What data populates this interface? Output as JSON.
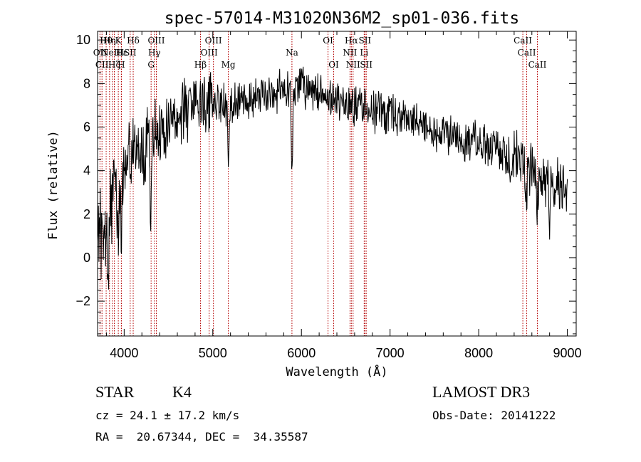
{
  "chart_data": {
    "type": "line",
    "title": "spec-57014-M31020N36M2_sp01-036.fits",
    "xlabel": "Wavelength (Å)",
    "ylabel": "Flux (relative)",
    "xlim": [
      3700,
      9100
    ],
    "ylim": [
      -3.6,
      10.4
    ],
    "xticks": [
      4000,
      5000,
      6000,
      7000,
      8000,
      9000
    ],
    "yticks": [
      -2,
      0,
      2,
      4,
      6,
      8,
      10
    ],
    "grid": false,
    "spectrum_seed": 57014,
    "continuum": [
      {
        "x": 3700,
        "y": 1.0
      },
      {
        "x": 3800,
        "y": 1.8
      },
      {
        "x": 3900,
        "y": 3.0
      },
      {
        "x": 4000,
        "y": 4.2
      },
      {
        "x": 4100,
        "y": 5.0
      },
      {
        "x": 4300,
        "y": 5.5
      },
      {
        "x": 4500,
        "y": 6.2
      },
      {
        "x": 4700,
        "y": 6.8
      },
      {
        "x": 4900,
        "y": 7.2
      },
      {
        "x": 5200,
        "y": 7.1
      },
      {
        "x": 5500,
        "y": 7.4
      },
      {
        "x": 5800,
        "y": 7.7
      },
      {
        "x": 6000,
        "y": 7.8
      },
      {
        "x": 6300,
        "y": 7.4
      },
      {
        "x": 6600,
        "y": 7.0
      },
      {
        "x": 7000,
        "y": 6.6
      },
      {
        "x": 7500,
        "y": 5.8
      },
      {
        "x": 8000,
        "y": 5.3
      },
      {
        "x": 8500,
        "y": 4.4
      },
      {
        "x": 8800,
        "y": 3.4
      },
      {
        "x": 9000,
        "y": 3.5
      }
    ],
    "absorption_features": [
      {
        "x": 3820,
        "depth": 3.0
      },
      {
        "x": 3934,
        "depth": 2.5
      },
      {
        "x": 3968,
        "depth": 2.5
      },
      {
        "x": 4226,
        "depth": 2.0
      },
      {
        "x": 4300,
        "depth": 3.5
      },
      {
        "x": 5175,
        "depth": 2.5
      },
      {
        "x": 5893,
        "depth": 3.5
      },
      {
        "x": 8542,
        "depth": 1.5
      },
      {
        "x": 8662,
        "depth": 1.5
      },
      {
        "x": 8800,
        "depth": 1.5
      }
    ],
    "spectral_lines": [
      {
        "x": 3727,
        "row": 2,
        "label": "OII"
      },
      {
        "x": 3750,
        "row": 3,
        "label": "CII"
      },
      {
        "x": 3797,
        "row": 1,
        "label": "Hθ"
      },
      {
        "x": 3835,
        "row": 1,
        "label": "Hη"
      },
      {
        "x": 3869,
        "row": 2,
        "label": "NeIII"
      },
      {
        "x": 3889,
        "row": 3,
        "label": "Hζ"
      },
      {
        "x": 3934,
        "row": 1,
        "label": "K"
      },
      {
        "x": 3968,
        "row": 3,
        "label": "H"
      },
      {
        "x": 3970,
        "row": 2,
        "label": "Hε"
      },
      {
        "x": 4068,
        "row": 2,
        "label": "SII"
      },
      {
        "x": 4102,
        "row": 1,
        "label": "Hδ"
      },
      {
        "x": 4304,
        "row": 3,
        "label": "G"
      },
      {
        "x": 4341,
        "row": 2,
        "label": "Hγ"
      },
      {
        "x": 4363,
        "row": 1,
        "label": "OIII"
      },
      {
        "x": 4861,
        "row": 3,
        "label": "Hβ"
      },
      {
        "x": 4959,
        "row": 2,
        "label": "OIII"
      },
      {
        "x": 5007,
        "row": 1,
        "label": "OIII"
      },
      {
        "x": 5175,
        "row": 3,
        "label": "Mg"
      },
      {
        "x": 5893,
        "row": 2,
        "label": "Na"
      },
      {
        "x": 6300,
        "row": 1,
        "label": "OI"
      },
      {
        "x": 6364,
        "row": 3,
        "label": "OI"
      },
      {
        "x": 6548,
        "row": 2,
        "label": "NII"
      },
      {
        "x": 6563,
        "row": 1,
        "label": "Hα"
      },
      {
        "x": 6583,
        "row": 3,
        "label": "NII"
      },
      {
        "x": 6708,
        "row": 2,
        "label": "Li"
      },
      {
        "x": 6716,
        "row": 1,
        "label": "SII"
      },
      {
        "x": 6731,
        "row": 3,
        "label": "SII"
      },
      {
        "x": 8498,
        "row": 1,
        "label": "CaII"
      },
      {
        "x": 8542,
        "row": 2,
        "label": "CaII"
      },
      {
        "x": 8662,
        "row": 3,
        "label": "CaII"
      }
    ],
    "line_color": "#000000",
    "marker_color": "#b40000"
  },
  "info": {
    "class": "STAR",
    "subclass": "K4",
    "cz": "cz = 24.1 ± 17.2 km/s",
    "coords": "RA =  20.67344, DEC =  34.35587",
    "survey": "LAMOST DR3",
    "obs_date": "Obs-Date: 20141222"
  }
}
